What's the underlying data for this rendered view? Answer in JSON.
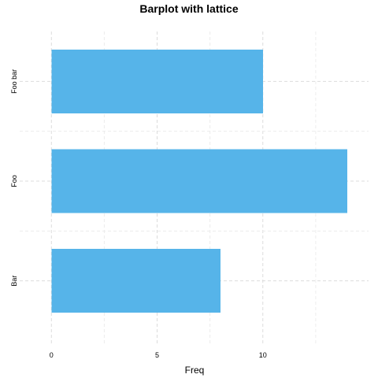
{
  "chart_data": {
    "type": "bar",
    "orientation": "horizontal",
    "title": "Barplot with lattice",
    "xlabel": "Freq",
    "ylabel": "",
    "categories": [
      "Bar",
      "Foo",
      "Foo bar"
    ],
    "values": [
      8,
      14,
      10
    ],
    "xlim": [
      -1.5,
      15
    ],
    "xticks": [
      "0",
      "5",
      "10"
    ],
    "grid": true,
    "bar_color": "#56b4e9",
    "grid_color": "#dcdcdc"
  }
}
